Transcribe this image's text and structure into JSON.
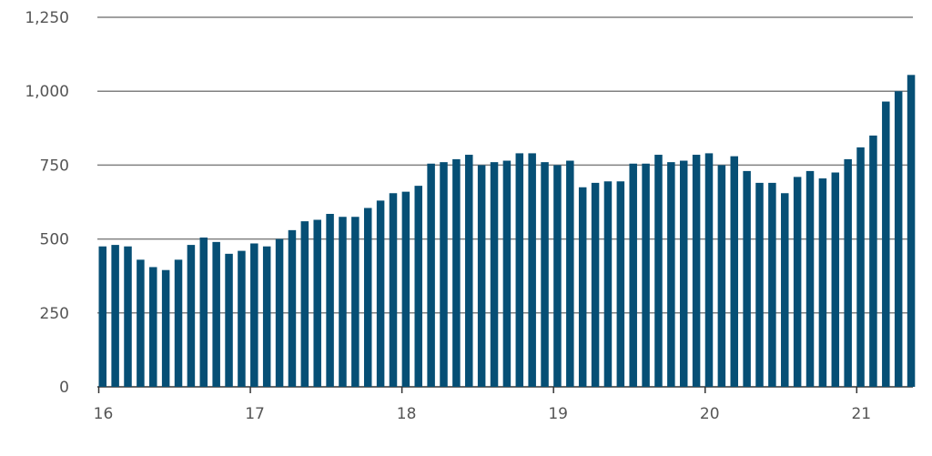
{
  "chart_data": {
    "type": "bar",
    "title": "",
    "xlabel": "",
    "ylabel": "",
    "ylim": [
      0,
      1250
    ],
    "yticks": [
      "0",
      "250",
      "500",
      "750",
      "1,000",
      "1,250"
    ],
    "ytick_values": [
      0,
      250,
      500,
      750,
      1000,
      1250
    ],
    "xtick_labels": [
      "16",
      "17",
      "18",
      "19",
      "20",
      "21"
    ],
    "xtick_bar_index": [
      0,
      12,
      24,
      36,
      48,
      60
    ],
    "grid": true,
    "colors": {
      "bar": "#064f75",
      "grid": "#808080",
      "text": "#555555"
    },
    "values": [
      475,
      480,
      475,
      430,
      405,
      395,
      430,
      480,
      505,
      490,
      450,
      460,
      485,
      475,
      500,
      530,
      560,
      565,
      585,
      575,
      575,
      605,
      630,
      655,
      660,
      680,
      755,
      760,
      770,
      785,
      750,
      760,
      765,
      790,
      790,
      760,
      750,
      765,
      675,
      690,
      695,
      695,
      755,
      755,
      785,
      760,
      765,
      785,
      790,
      750,
      780,
      730,
      690,
      690,
      655,
      710,
      730,
      705,
      725,
      770,
      810,
      850,
      965,
      1000,
      1055
    ]
  }
}
